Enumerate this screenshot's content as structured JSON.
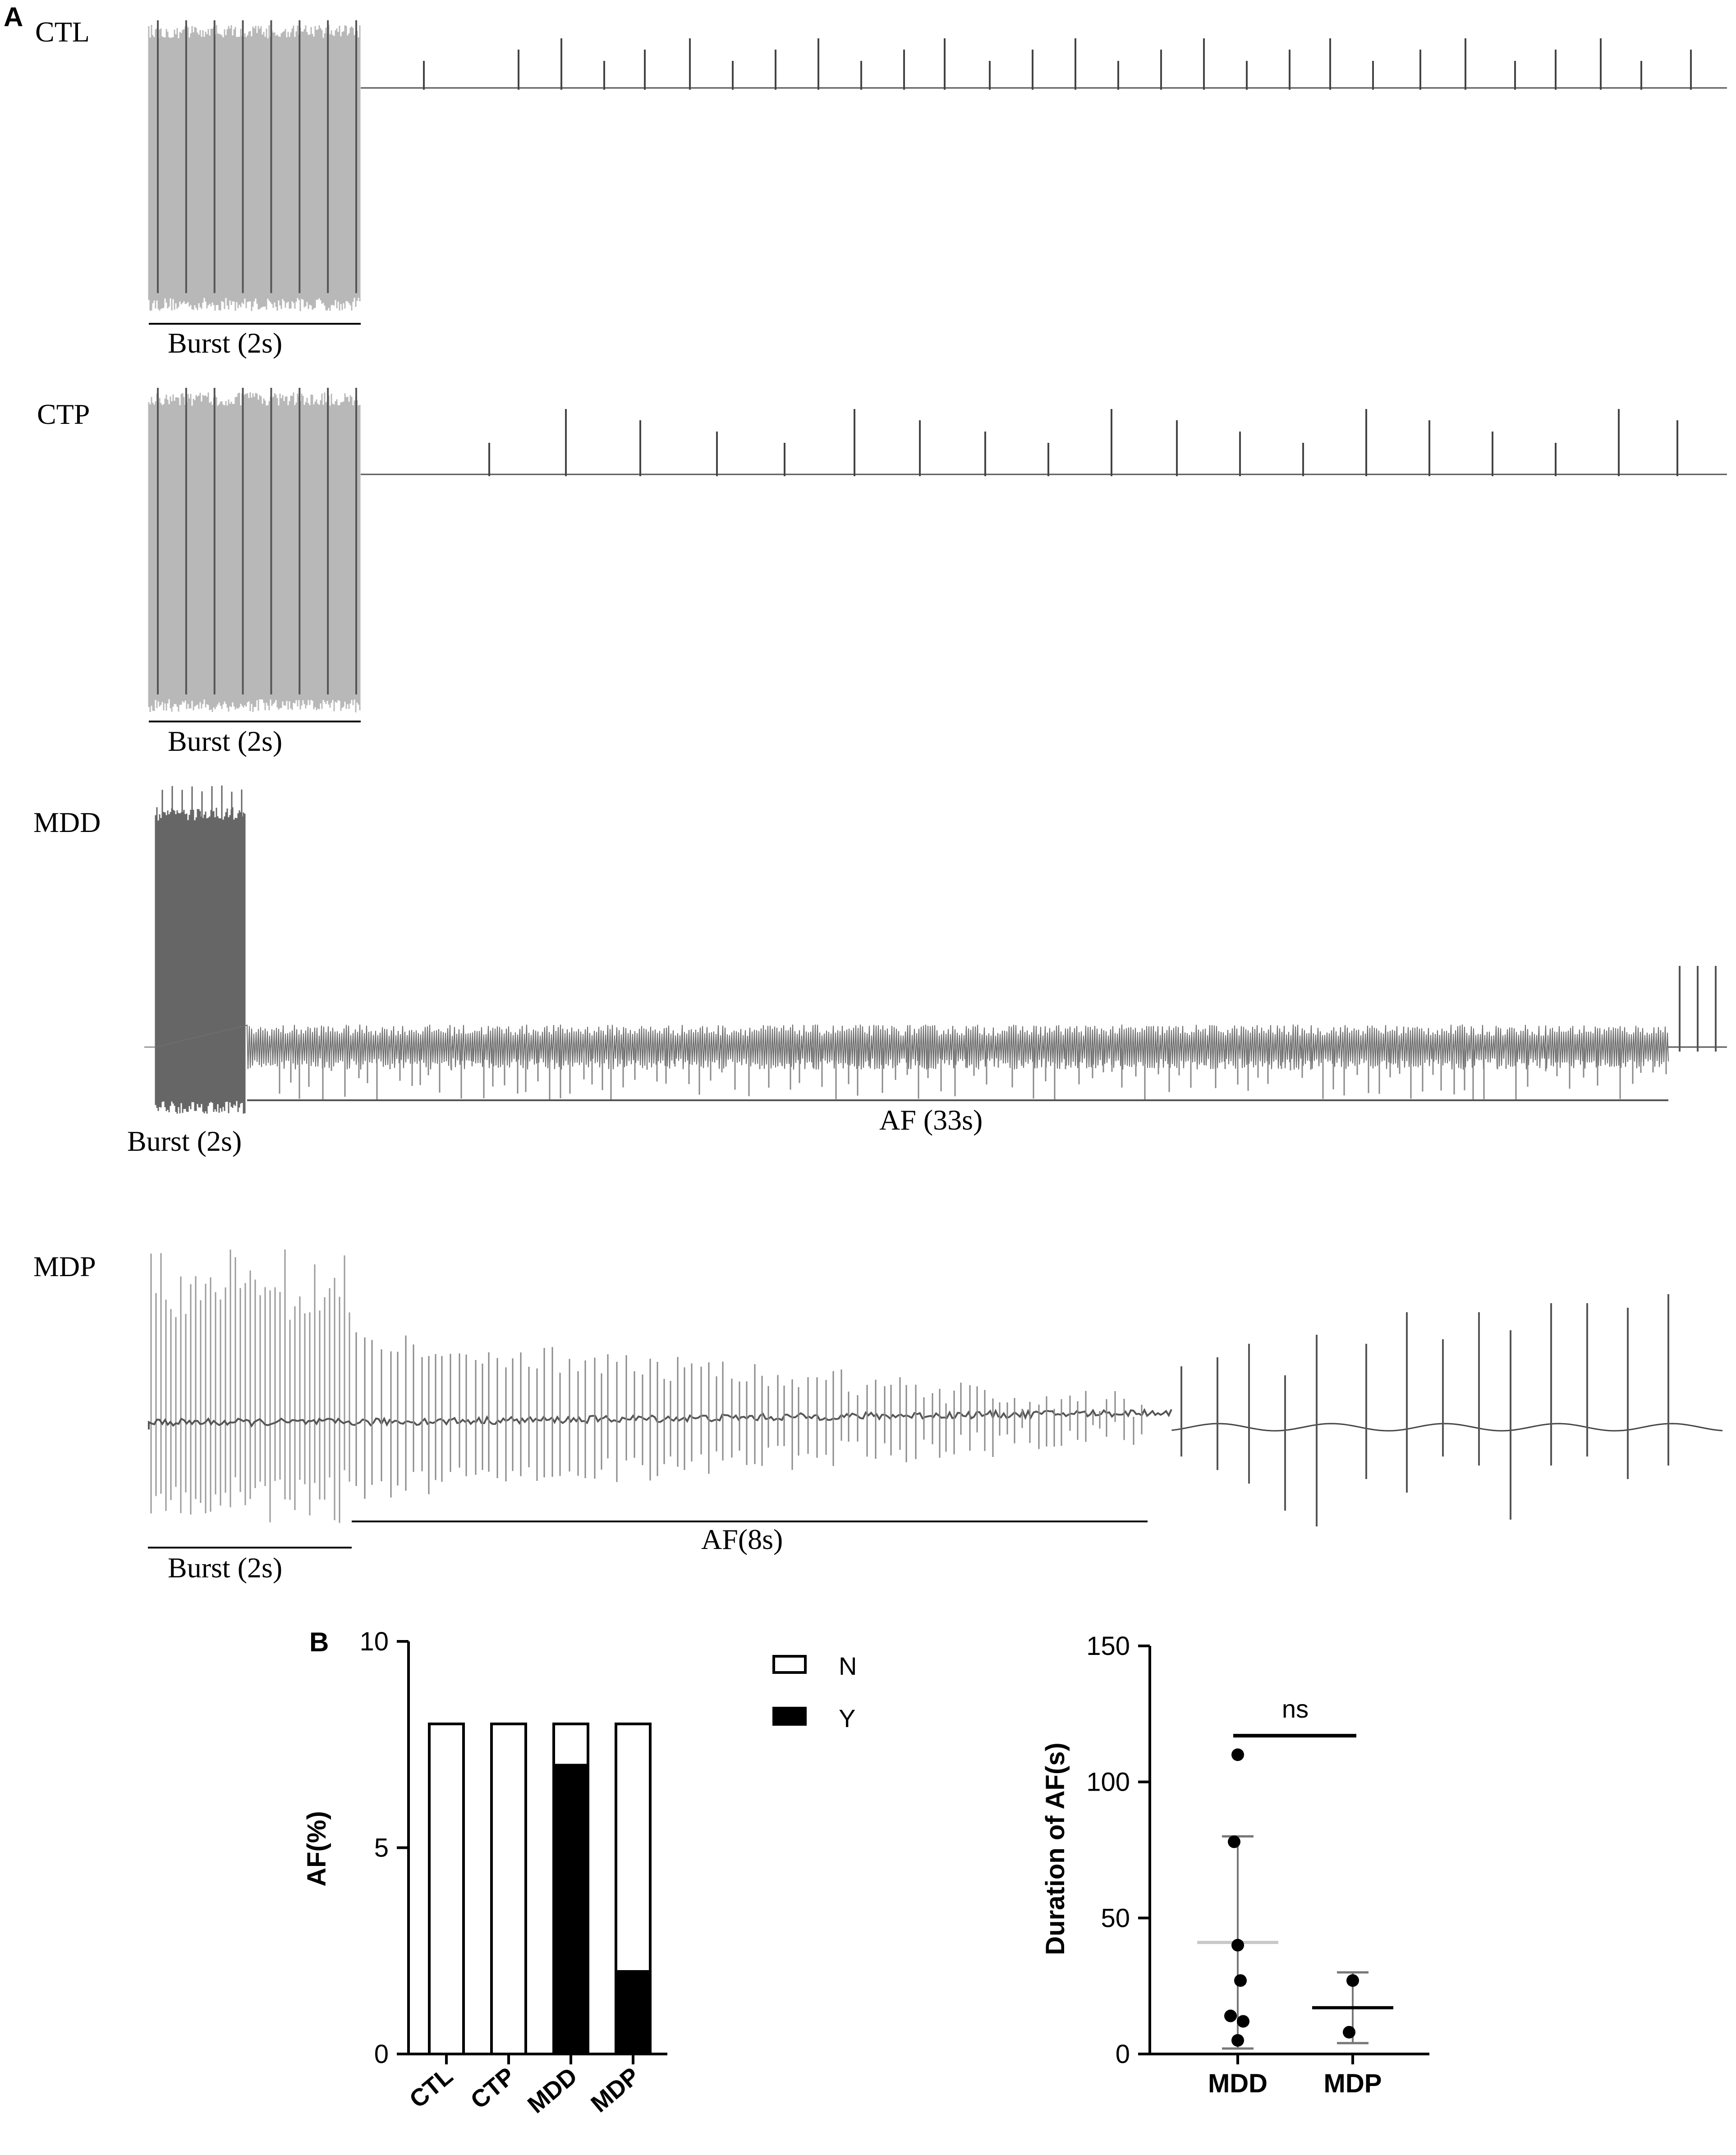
{
  "panel_a": {
    "letter": "A",
    "traces": [
      {
        "label": "CTL",
        "burst_label": "Burst  (2s)",
        "af_label": "",
        "burst_color": "#b8b8b8",
        "spike_color": "#444444"
      },
      {
        "label": "CTP",
        "burst_label": "Burst  (2s)",
        "af_label": "",
        "burst_color": "#b8b8b8",
        "spike_color": "#444444"
      },
      {
        "label": "MDD",
        "burst_label": "Burst  (2s)",
        "af_label": "AF  (33s)",
        "burst_color": "#666666",
        "spike_color": "#555555"
      },
      {
        "label": "MDP",
        "burst_label": "Burst  (2s)",
        "af_label": "AF(8s)",
        "burst_color": "#9a9a9a",
        "spike_color": "#555555"
      }
    ]
  },
  "panel_b": {
    "letter": "B",
    "legend": [
      {
        "label": "N",
        "color": "#ffffff"
      },
      {
        "label": "Y",
        "color": "#000000"
      }
    ],
    "significance_label": "ns"
  },
  "chart_data": [
    {
      "type": "bar",
      "stacked": true,
      "title": "",
      "xlabel": "",
      "ylabel": "AF(%)",
      "ylim": [
        0,
        10
      ],
      "yticks": [
        "0",
        "5",
        "10"
      ],
      "categories": [
        "CTL",
        "CTP",
        "MDD",
        "MDP"
      ],
      "series": [
        {
          "name": "Y",
          "color": "#000000",
          "values": [
            0,
            0,
            7,
            2
          ]
        },
        {
          "name": "N",
          "color": "#ffffff",
          "values": [
            8,
            8,
            1,
            6
          ]
        }
      ],
      "legend_position": "right"
    },
    {
      "type": "scatter",
      "title": "",
      "xlabel": "",
      "ylabel": "Duration of AF(s)",
      "ylim": [
        0,
        150
      ],
      "yticks": [
        "0",
        "50",
        "100",
        "150"
      ],
      "categories": [
        "MDD",
        "MDP"
      ],
      "groups": [
        {
          "category": "MDD",
          "points": [
            110,
            78,
            40,
            27,
            14,
            12,
            5
          ],
          "mean": 41,
          "error_low": 2,
          "error_high": 80,
          "mean_color": "#c8c8c8"
        },
        {
          "category": "MDP",
          "points": [
            27,
            8
          ],
          "mean": 17,
          "error_low": 4,
          "error_high": 30,
          "mean_color": "#000000"
        }
      ],
      "comparison": {
        "from": "MDD",
        "to": "MDP",
        "y": 117,
        "label": "ns"
      }
    }
  ]
}
